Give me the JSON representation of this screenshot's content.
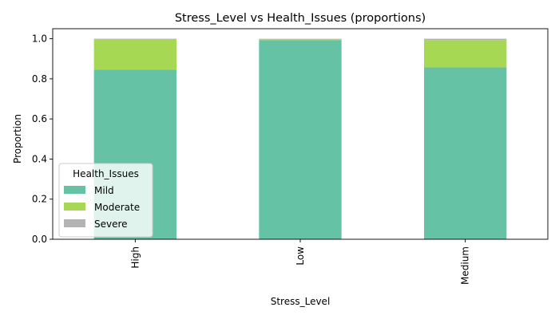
{
  "chart_data": {
    "type": "bar",
    "stacked": true,
    "title": "Stress_Level vs Health_Issues (proportions)",
    "xlabel": "Stress_Level",
    "ylabel": "Proportion",
    "categories": [
      "High",
      "Low",
      "Medium"
    ],
    "series": [
      {
        "name": "Mild",
        "values": [
          0.845,
          0.993,
          0.857
        ],
        "color": "#66c2a5"
      },
      {
        "name": "Moderate",
        "values": [
          0.151,
          0.006,
          0.136
        ],
        "color": "#a6d854"
      },
      {
        "name": "Severe",
        "values": [
          0.004,
          0.001,
          0.007
        ],
        "color": "#b3b3b3"
      }
    ],
    "ylim": [
      0,
      1.05
    ],
    "yticks": [
      "0.0",
      "0.2",
      "0.4",
      "0.6",
      "0.8",
      "1.0"
    ],
    "legend": {
      "title": "Health_Issues",
      "placement": "lower-left"
    },
    "grid": false
  }
}
